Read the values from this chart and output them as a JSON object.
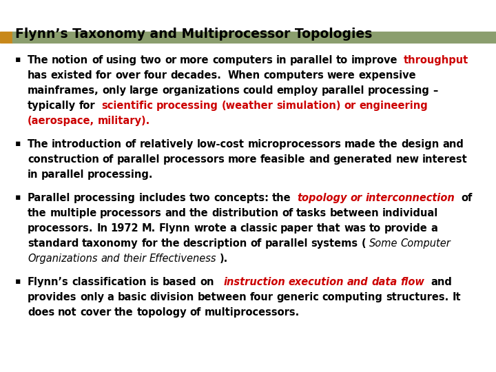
{
  "title": "Flynn’s Taxonomy and Multiprocessor Topologies",
  "title_fontsize": 13.5,
  "title_color": "#000000",
  "header_bar_color": "#8B9E6E",
  "header_bar_left_color": "#C8881A",
  "background_color": "#FFFFFF",
  "bullet_fontsize": 10.5,
  "red_color": "#CC0000",
  "black_color": "#000000",
  "bullets": [
    {
      "segments": [
        {
          "text": "The notion of using two or more computers in parallel to improve ",
          "color": "#000000",
          "bold": true,
          "italic": false
        },
        {
          "text": "throughput",
          "color": "#CC0000",
          "bold": true,
          "italic": false
        },
        {
          "text": " has existed for over four decades.  When computers were expensive mainframes, only large organizations could employ parallel processing – typically for ",
          "color": "#000000",
          "bold": true,
          "italic": false
        },
        {
          "text": "scientific processing (weather simulation) or engineering (aerospace, military).",
          "color": "#CC0000",
          "bold": true,
          "italic": false
        }
      ]
    },
    {
      "segments": [
        {
          "text": "The introduction of relatively low-cost microprocessors made the design and construction of parallel processors more feasible and generated new interest in parallel processing.",
          "color": "#000000",
          "bold": true,
          "italic": false
        }
      ]
    },
    {
      "segments": [
        {
          "text": "Parallel processing includes two concepts: the ",
          "color": "#000000",
          "bold": true,
          "italic": false
        },
        {
          "text": "topology or interconnection",
          "color": "#CC0000",
          "bold": true,
          "italic": true
        },
        {
          "text": " of the multiple processors and the distribution of tasks between individual processors. In 1972 M. Flynn wrote a classic paper that was to provide a standard taxonomy for the description of parallel systems (",
          "color": "#000000",
          "bold": true,
          "italic": false
        },
        {
          "text": "Some Computer Organizations and their Effectiveness",
          "color": "#000000",
          "bold": false,
          "italic": true
        },
        {
          "text": ").",
          "color": "#000000",
          "bold": true,
          "italic": false
        }
      ]
    },
    {
      "segments": [
        {
          "text": "Flynn’s classification is based on  ",
          "color": "#000000",
          "bold": true,
          "italic": false
        },
        {
          "text": "instruction execution and data flow",
          "color": "#CC0000",
          "bold": true,
          "italic": true
        },
        {
          "text": " and provides only a basic division between four generic computing structures. It does not cover the topology of multiprocessors.",
          "color": "#000000",
          "bold": true,
          "italic": false
        }
      ]
    }
  ]
}
